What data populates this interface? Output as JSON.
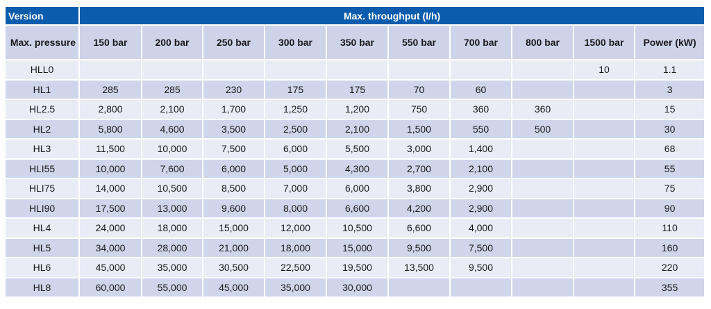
{
  "header": {
    "version": "Version",
    "title": "Max. throughput (l/h)",
    "pressure_label": "Max. pressure",
    "columns": [
      "150 bar",
      "200 bar",
      "250 bar",
      "300 bar",
      "350 bar",
      "550 bar",
      "700 bar",
      "800 bar",
      "1500 bar"
    ],
    "power_label": "Power (kW)"
  },
  "table": {
    "rows": [
      [
        "HLL0",
        null,
        null,
        null,
        null,
        null,
        null,
        null,
        null,
        "10",
        "1.1"
      ],
      [
        "HL1",
        "285",
        "285",
        "230",
        "175",
        "175",
        "70",
        "60",
        null,
        null,
        "3"
      ],
      [
        "HL2.5",
        "2,800",
        "2,100",
        "1,700",
        "1,250",
        "1,200",
        "750",
        "360",
        "360",
        null,
        "15"
      ],
      [
        "HL2",
        "5,800",
        "4,600",
        "3,500",
        "2,500",
        "2,100",
        "1,500",
        "550",
        "500",
        null,
        "30"
      ],
      [
        "HL3",
        "11,500",
        "10,000",
        "7,500",
        "6,000",
        "5,500",
        "3,000",
        "1,400",
        null,
        null,
        "68"
      ],
      [
        "HLI55",
        "10,000",
        "7,600",
        "6,000",
        "5,000",
        "4,300",
        "2,700",
        "2,100",
        null,
        null,
        "55"
      ],
      [
        "HLI75",
        "14,000",
        "10,500",
        "8,500",
        "7,000",
        "6,000",
        "3,800",
        "2,900",
        null,
        null,
        "75"
      ],
      [
        "HLI90",
        "17,500",
        "13,000",
        "9,600",
        "8,000",
        "6,600",
        "4,200",
        "2,900",
        null,
        null,
        "90"
      ],
      [
        "HL4",
        "24,000",
        "18,000",
        "15,000",
        "12,000",
        "10,500",
        "6,600",
        "4,000",
        null,
        null,
        "110"
      ],
      [
        "HL5",
        "34,000",
        "28,000",
        "21,000",
        "18,000",
        "15,000",
        "9,500",
        "7,500",
        null,
        null,
        "160"
      ],
      [
        "HL6",
        "45,000",
        "35,000",
        "30,500",
        "22,500",
        "19,500",
        "13,500",
        "9,500",
        null,
        null,
        "220"
      ],
      [
        "HL8",
        "60,000",
        "55,000",
        "45,000",
        "35,000",
        "30,000",
        null,
        null,
        null,
        null,
        "355"
      ]
    ]
  }
}
